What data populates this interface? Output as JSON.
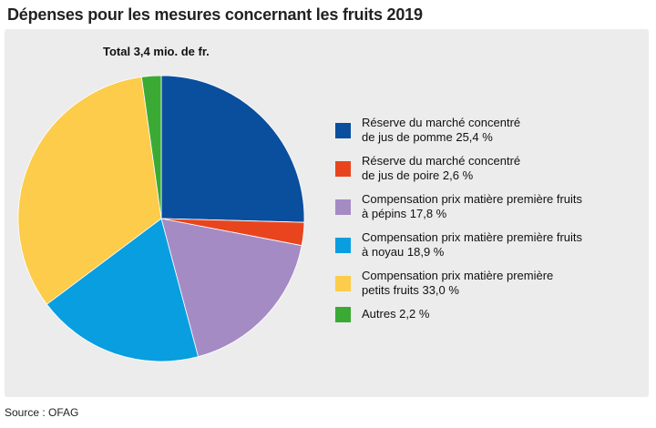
{
  "title": "Dépenses pour les mesures concernant les fruits 2019",
  "source": "Source : OFAG",
  "chart_data": {
    "type": "pie",
    "subtitle": "Total 3,4 mio. de fr.",
    "unit": "%",
    "start_angle_deg": 0,
    "direction": "clockwise",
    "slices": [
      {
        "label_lines": [
          "Réserve du marché concentré",
          "de jus de pomme 25,4 %"
        ],
        "value": 25.4,
        "color": "#0a4f9e"
      },
      {
        "label_lines": [
          "Réserve du marché concentré",
          "de jus de poire 2,6 %"
        ],
        "value": 2.6,
        "color": "#e8451e"
      },
      {
        "label_lines": [
          "Compensation prix matière première fruits",
          "à pépins 17,8 %"
        ],
        "value": 17.8,
        "color": "#a58bc4"
      },
      {
        "label_lines": [
          "Compensation prix matière première fruits",
          "à noyau 18,9 %"
        ],
        "value": 18.9,
        "color": "#089ee0"
      },
      {
        "label_lines": [
          "Compensation prix matière première",
          "petits fruits 33,0 %"
        ],
        "value": 33.0,
        "color": "#fccc4a"
      },
      {
        "label_lines": [
          "Autres 2,2 %"
        ],
        "value": 2.2,
        "color": "#3aaa35"
      }
    ]
  }
}
